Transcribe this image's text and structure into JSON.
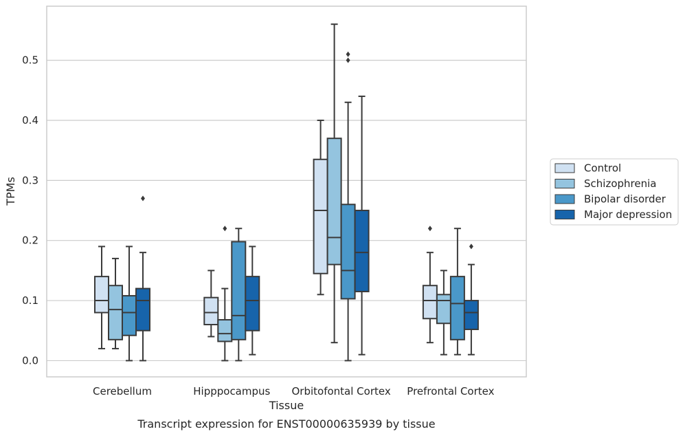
{
  "chart_data": {
    "type": "box",
    "caption": "Transcript expression for ENST00000635939 by tissue",
    "xlabel": "Tissue",
    "ylabel": "TPMs",
    "ylim": [
      -0.027,
      0.59
    ],
    "yticks": [
      0.0,
      0.1,
      0.2,
      0.3,
      0.4,
      0.5
    ],
    "ytick_labels": [
      "0.0",
      "0.1",
      "0.2",
      "0.3",
      "0.4",
      "0.5"
    ],
    "grid": true,
    "legend_position": "right",
    "categories": [
      "Cerebellum",
      "Hipppocampus",
      "Orbitofontal Cortex",
      "Prefrontal Cortex"
    ],
    "series": [
      {
        "name": "Control",
        "color": "#d0e1f2",
        "boxes": [
          {
            "q1": 0.08,
            "median": 0.1,
            "q3": 0.14,
            "whislo": 0.02,
            "whishi": 0.19,
            "fliers": []
          },
          {
            "q1": 0.06,
            "median": 0.08,
            "q3": 0.105,
            "whislo": 0.04,
            "whishi": 0.15,
            "fliers": []
          },
          {
            "q1": 0.145,
            "median": 0.25,
            "q3": 0.335,
            "whislo": 0.11,
            "whishi": 0.4,
            "fliers": []
          },
          {
            "q1": 0.07,
            "median": 0.1,
            "q3": 0.125,
            "whislo": 0.03,
            "whishi": 0.18,
            "fliers": [
              0.22
            ]
          }
        ]
      },
      {
        "name": "Schizophrenia",
        "color": "#94c4df",
        "boxes": [
          {
            "q1": 0.035,
            "median": 0.085,
            "q3": 0.125,
            "whislo": 0.02,
            "whishi": 0.17,
            "fliers": []
          },
          {
            "q1": 0.032,
            "median": 0.045,
            "q3": 0.068,
            "whislo": 0.0,
            "whishi": 0.12,
            "fliers": [
              0.22
            ]
          },
          {
            "q1": 0.16,
            "median": 0.205,
            "q3": 0.37,
            "whislo": 0.03,
            "whishi": 0.56,
            "fliers": []
          },
          {
            "q1": 0.062,
            "median": 0.1,
            "q3": 0.11,
            "whislo": 0.01,
            "whishi": 0.15,
            "fliers": []
          }
        ]
      },
      {
        "name": "Bipolar disorder",
        "color": "#4a98c9",
        "boxes": [
          {
            "q1": 0.042,
            "median": 0.08,
            "q3": 0.108,
            "whislo": 0.0,
            "whishi": 0.19,
            "fliers": []
          },
          {
            "q1": 0.035,
            "median": 0.075,
            "q3": 0.198,
            "whislo": 0.0,
            "whishi": 0.22,
            "fliers": []
          },
          {
            "q1": 0.103,
            "median": 0.15,
            "q3": 0.26,
            "whislo": 0.0,
            "whishi": 0.43,
            "fliers": [
              0.5,
              0.51
            ]
          },
          {
            "q1": 0.035,
            "median": 0.095,
            "q3": 0.14,
            "whislo": 0.01,
            "whishi": 0.22,
            "fliers": []
          }
        ]
      },
      {
        "name": "Major depression",
        "color": "#1764ab",
        "boxes": [
          {
            "q1": 0.05,
            "median": 0.1,
            "q3": 0.12,
            "whislo": 0.0,
            "whishi": 0.18,
            "fliers": [
              0.27
            ]
          },
          {
            "q1": 0.05,
            "median": 0.1,
            "q3": 0.14,
            "whislo": 0.01,
            "whishi": 0.19,
            "fliers": []
          },
          {
            "q1": 0.115,
            "median": 0.18,
            "q3": 0.25,
            "whislo": 0.01,
            "whishi": 0.44,
            "fliers": []
          },
          {
            "q1": 0.052,
            "median": 0.08,
            "q3": 0.1,
            "whislo": 0.01,
            "whishi": 0.16,
            "fliers": [
              0.19
            ]
          }
        ]
      }
    ]
  }
}
